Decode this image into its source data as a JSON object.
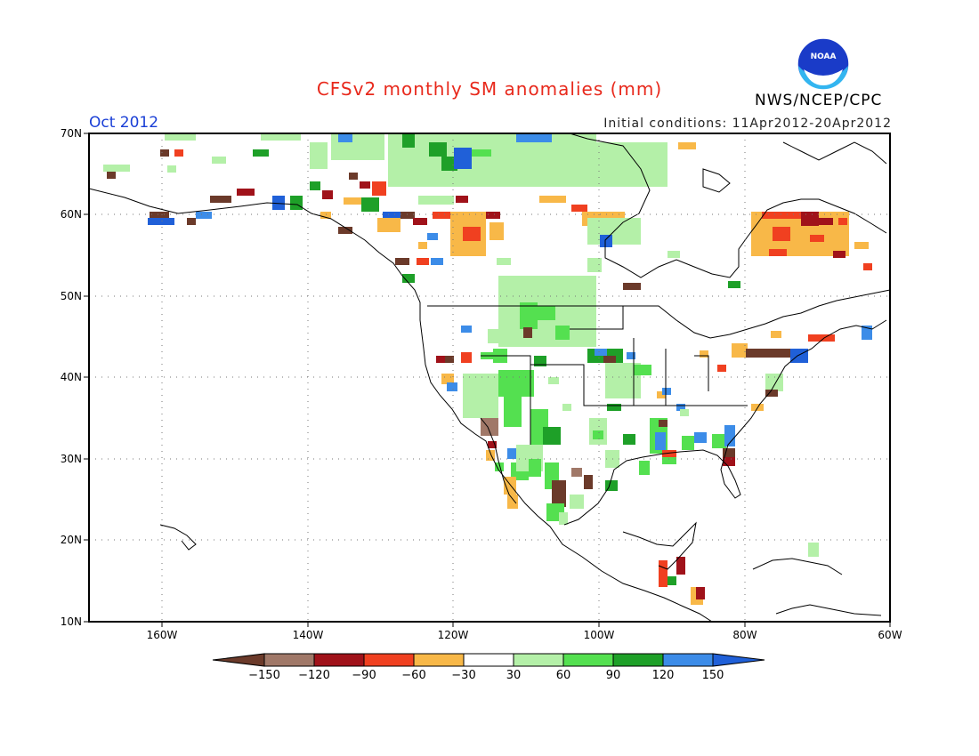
{
  "header": {
    "title": "CFSv2 monthly SM anomalies (mm)",
    "period": "Oct 2012",
    "initial_conditions": "Initial conditions: 11Apr2012-20Apr2012",
    "agency": "NWS/NCEP/CPC",
    "logo_text": "NOAA"
  },
  "map": {
    "lat_labels": [
      "70N",
      "60N",
      "50N",
      "40N",
      "30N",
      "20N",
      "10N"
    ],
    "lon_labels": [
      "160W",
      "140W",
      "120W",
      "100W",
      "80W",
      "60W"
    ],
    "lat_range": [
      10,
      70
    ],
    "lon_range": [
      -170,
      -60
    ],
    "grid": true
  },
  "colorbar": {
    "labels": [
      "-150",
      "-120",
      "-90",
      "-60",
      "-30",
      "30",
      "60",
      "90",
      "120",
      "150"
    ],
    "colors": [
      "#6b3a2a",
      "#a07868",
      "#a0121a",
      "#f04020",
      "#f8b848",
      "#ffffff",
      "#b4f0a8",
      "#54e050",
      "#1ea028",
      "#3c8ce8",
      "#2060d8"
    ]
  }
}
